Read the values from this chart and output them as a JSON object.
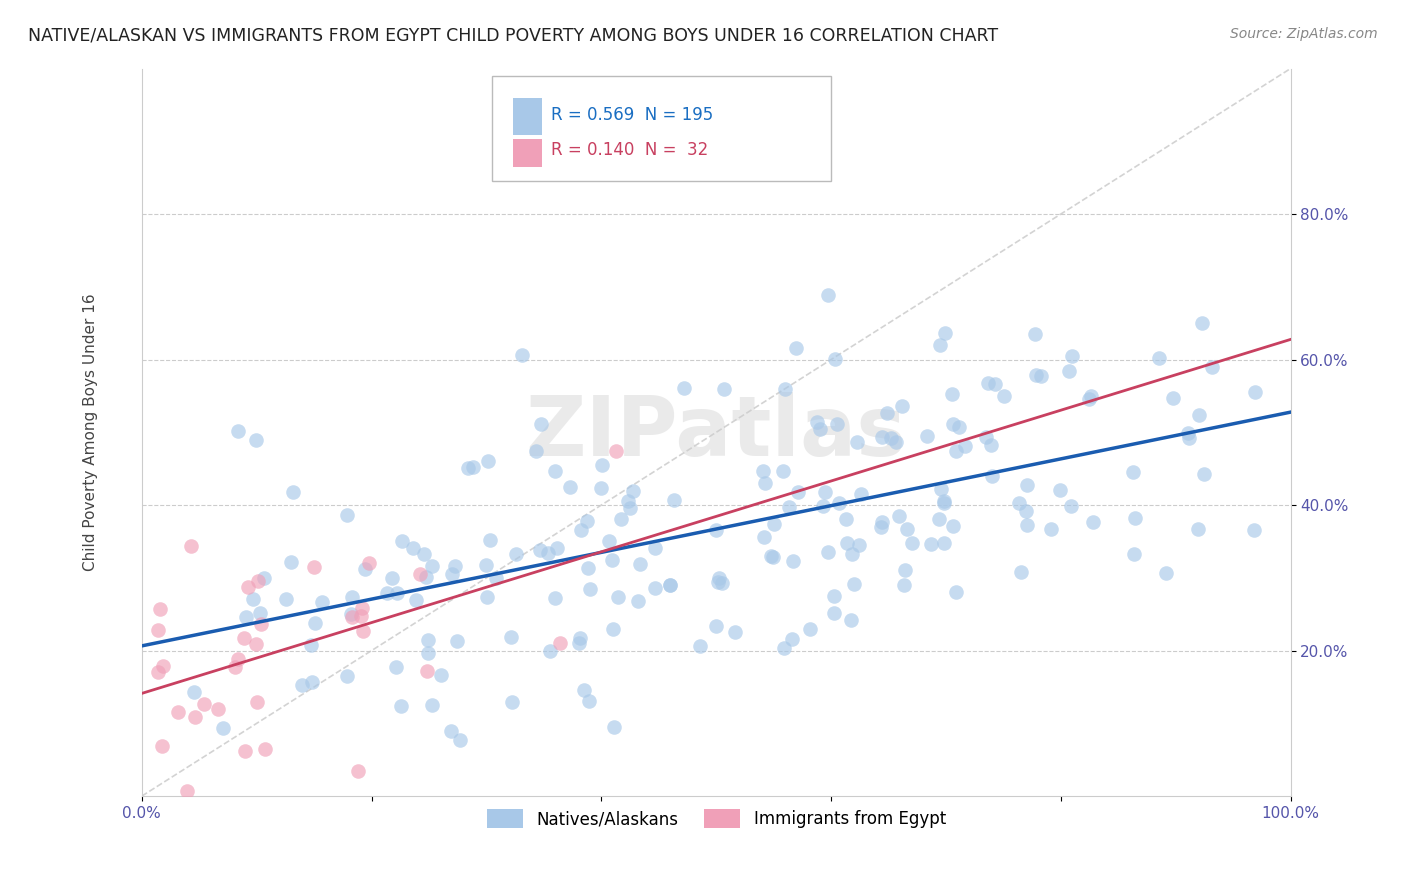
{
  "title": "NATIVE/ALASKAN VS IMMIGRANTS FROM EGYPT CHILD POVERTY AMONG BOYS UNDER 16 CORRELATION CHART",
  "source": "Source: ZipAtlas.com",
  "ylabel": "Child Poverty Among Boys Under 16",
  "xlim": [
    0.0,
    1.0
  ],
  "ylim": [
    0.0,
    1.0
  ],
  "xticks": [
    0.0,
    0.2,
    0.4,
    0.6,
    0.8,
    1.0
  ],
  "xticklabels_show": [
    "0.0%",
    "",
    "",
    "",
    "",
    "100.0%"
  ],
  "yticks": [
    0.2,
    0.4,
    0.6,
    0.8
  ],
  "yticklabels": [
    "20.0%",
    "40.0%",
    "60.0%",
    "80.0%"
  ],
  "blue_color": "#A8C8E8",
  "pink_color": "#F0A0B8",
  "blue_line_color": "#1A5CB0",
  "pink_line_color": "#C84060",
  "trendline_color": "#C8C8C8",
  "R_blue": 0.569,
  "N_blue": 195,
  "R_pink": 0.14,
  "N_pink": 32,
  "legend_label_blue": "Natives/Alaskans",
  "legend_label_pink": "Immigrants from Egypt",
  "watermark": "ZIPatlas",
  "background_color": "#FFFFFF",
  "grid_color": "#CCCCCC",
  "blue_seed": 42,
  "pink_seed": 123,
  "tick_color": "#5555AA",
  "ylabel_color": "#444444",
  "title_color": "#222222",
  "source_color": "#888888"
}
